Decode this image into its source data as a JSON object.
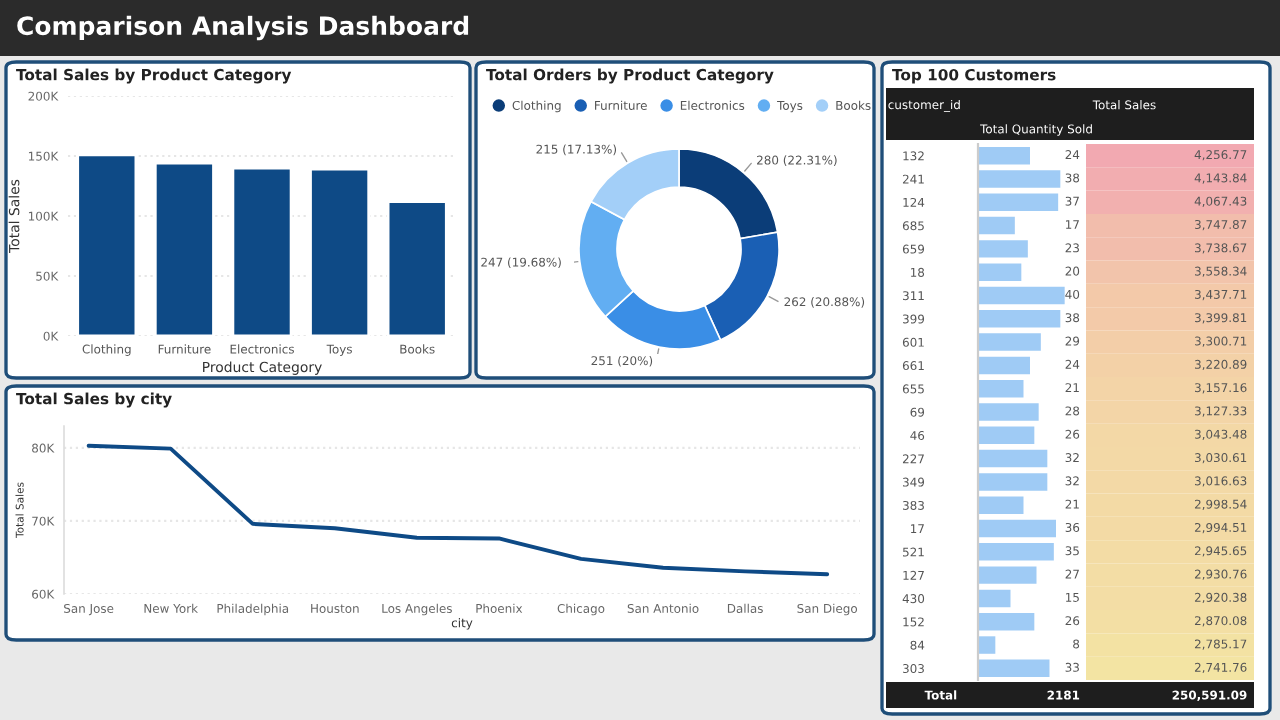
{
  "chart_data": [
    {
      "type": "bar",
      "title": "Total Sales by Product Category",
      "xlabel": "Product Category",
      "ylabel": "Total Sales",
      "annotations": [
        "Comparison Analysis Dashboard"
      ],
      "categories": [
        "Clothing",
        "Furniture",
        "Electronics",
        "Toys",
        "Books"
      ],
      "values": [
        151000,
        144000,
        140000,
        139000,
        112000
      ],
      "color": "#0e4a86",
      "ylim": [
        0,
        200000
      ],
      "yticks": [
        {
          "value": 0,
          "label": "0K"
        },
        {
          "value": 50000,
          "label": "50K"
        },
        {
          "value": 100000,
          "label": "100K"
        },
        {
          "value": 150000,
          "label": "150K"
        },
        {
          "value": 200000,
          "label": "200K"
        }
      ],
      "grid": "y"
    },
    {
      "type": "donut",
      "title": "Total Orders by Product Category",
      "categories": [
        "Clothing",
        "Furniture",
        "Electronics",
        "Toys",
        "Books"
      ],
      "values": [
        280,
        262,
        251,
        247,
        215
      ],
      "value_labels": [
        "280 (22.31%)",
        "262 (20.88%)",
        "251 (20%)",
        "247 (19.68%)",
        "215 (17.13%)"
      ],
      "colors": [
        "#0b3d78",
        "#1a5fb4",
        "#3a8ee6",
        "#62aef2",
        "#a3cff8"
      ],
      "legend": "top"
    },
    {
      "type": "line",
      "title": "Total Sales by city",
      "xlabel": "city",
      "ylabel": "Total Sales",
      "categories": [
        "San Jose",
        "New York",
        "Philadelphia",
        "Houston",
        "Los Angeles",
        "Phoenix",
        "Chicago",
        "San Antonio",
        "Dallas",
        "San Diego"
      ],
      "values": [
        80300,
        79900,
        69600,
        69000,
        67700,
        67600,
        64800,
        63600,
        63100,
        62700
      ],
      "color": "#0e4a86",
      "ylim": [
        60000,
        83000
      ],
      "yticks": [
        {
          "value": 60000,
          "label": "60K"
        },
        {
          "value": 70000,
          "label": "70K"
        },
        {
          "value": 80000,
          "label": "80K"
        }
      ],
      "grid": "y"
    },
    {
      "type": "bar",
      "orientation": "horizontal",
      "title": "Top 100 Customers",
      "xlabel": "Total Quantity Sold",
      "categories": [
        null,
        null,
        null,
        null,
        null,
        null,
        null,
        null,
        null,
        null,
        null,
        null,
        null,
        null,
        null,
        null,
        null,
        null,
        null,
        null,
        null,
        null,
        null
      ],
      "values": [
        24,
        38,
        37,
        17,
        23,
        20,
        40,
        38,
        29,
        24,
        21,
        28,
        26,
        32,
        32,
        21,
        36,
        35,
        27,
        15,
        26,
        8,
        33
      ],
      "color": "#9fcbf5",
      "data_labels": true,
      "annotations": [
        "Total",
        "2181"
      ]
    },
    {
      "type": "heatmap",
      "categories": [
        null
      ],
      "xlabel": "Total Sales",
      "ylabel": "customer_id",
      "tick_labels": "y",
      "y_categories": [
        "132",
        "241",
        "124",
        "685",
        "659",
        "18",
        "311",
        "399",
        "601",
        "661",
        "655",
        "69",
        "46",
        "227",
        "349",
        "383",
        "17",
        "521",
        "127",
        "430",
        "152",
        "84",
        "303"
      ],
      "cells": [
        [
          4256.77
        ],
        [
          4143.84
        ],
        [
          4067.43
        ],
        [
          3747.87
        ],
        [
          3738.67
        ],
        [
          3558.34
        ],
        [
          3437.71
        ],
        [
          3399.81
        ],
        [
          3300.71
        ],
        [
          3220.89
        ],
        [
          3157.16
        ],
        [
          3127.33
        ],
        [
          3043.48
        ],
        [
          3030.61
        ],
        [
          3016.63
        ],
        [
          2998.54
        ],
        [
          2994.51
        ],
        [
          2945.65
        ],
        [
          2930.76
        ],
        [
          2920.38
        ],
        [
          2870.08
        ],
        [
          2785.17
        ],
        [
          2741.76
        ]
      ],
      "cell_labels": [
        [
          "4,256.77"
        ],
        [
          "4,143.84"
        ],
        [
          "4,067.43"
        ],
        [
          "3,747.87"
        ],
        [
          "3,738.67"
        ],
        [
          "3,558.34"
        ],
        [
          "3,437.71"
        ],
        [
          "3,399.81"
        ],
        [
          "3,300.71"
        ],
        [
          "3,220.89"
        ],
        [
          "3,157.16"
        ],
        [
          "3,127.33"
        ],
        [
          "3,043.48"
        ],
        [
          "3,030.61"
        ],
        [
          "3,016.63"
        ],
        [
          "2,998.54"
        ],
        [
          "2,994.51"
        ],
        [
          "2,945.65"
        ],
        [
          "2,930.76"
        ],
        [
          "2,920.38"
        ],
        [
          "2,870.08"
        ],
        [
          "2,785.17"
        ],
        [
          "2,741.76"
        ]
      ],
      "annotations": [
        "250,591.09"
      ]
    }
  ]
}
